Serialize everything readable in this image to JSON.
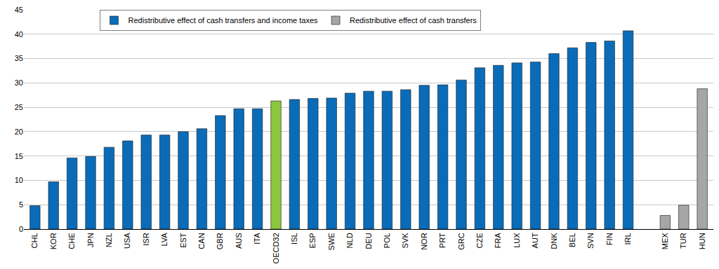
{
  "chart_data": {
    "type": "bar",
    "categories": [
      "CHL",
      "KOR",
      "CHE",
      "JPN",
      "NZL",
      "USA",
      "ISR",
      "LVA",
      "EST",
      "CAN",
      "GBR",
      "AUS",
      "ITA",
      "OECD32",
      "ISL",
      "ESP",
      "SWE",
      "NLD",
      "DEU",
      "POL",
      "SVK",
      "NOR",
      "PRT",
      "GRC",
      "CZE",
      "FRA",
      "LUX",
      "AUT",
      "DNK",
      "BEL",
      "SVN",
      "FIN",
      "IRL",
      null,
      "MEX",
      "TUR",
      "HUN"
    ],
    "series": [
      {
        "name": "Redistributive effect of cash transfers and income taxes",
        "color": "#0a6cb8",
        "colors": [
          "#0a6cb8",
          "#0a6cb8",
          "#0a6cb8",
          "#0a6cb8",
          "#0a6cb8",
          "#0a6cb8",
          "#0a6cb8",
          "#0a6cb8",
          "#0a6cb8",
          "#0a6cb8",
          "#0a6cb8",
          "#0a6cb8",
          "#0a6cb8",
          "#8cc63f",
          "#0a6cb8",
          "#0a6cb8",
          "#0a6cb8",
          "#0a6cb8",
          "#0a6cb8",
          "#0a6cb8",
          "#0a6cb8",
          "#0a6cb8",
          "#0a6cb8",
          "#0a6cb8",
          "#0a6cb8",
          "#0a6cb8",
          "#0a6cb8",
          "#0a6cb8",
          "#0a6cb8",
          "#0a6cb8",
          "#0a6cb8",
          "#0a6cb8",
          "#0a6cb8",
          "#0a6cb8",
          "#0a6cb8",
          "#0a6cb8",
          "#0a6cb8"
        ],
        "values": [
          4.8,
          9.7,
          14.6,
          14.9,
          16.8,
          18.1,
          19.3,
          19.3,
          20.0,
          20.6,
          23.3,
          24.7,
          24.7,
          26.3,
          26.6,
          26.8,
          26.9,
          27.9,
          28.3,
          28.3,
          28.6,
          29.5,
          29.6,
          30.6,
          33.1,
          33.6,
          34.1,
          34.3,
          36.0,
          37.2,
          38.3,
          38.6,
          40.7,
          null,
          null,
          null,
          null
        ]
      },
      {
        "name": "Redistributive effect of cash transfers",
        "color": "#a6a6a6",
        "values": [
          null,
          null,
          null,
          null,
          null,
          null,
          null,
          null,
          null,
          null,
          null,
          null,
          null,
          null,
          null,
          null,
          null,
          null,
          null,
          null,
          null,
          null,
          null,
          null,
          null,
          null,
          null,
          null,
          null,
          null,
          null,
          null,
          null,
          null,
          2.8,
          4.9,
          28.8
        ]
      }
    ],
    "ylim": [
      0,
      45
    ],
    "yticks": [
      0,
      5,
      10,
      15,
      20,
      25,
      30,
      35,
      40,
      45
    ],
    "grid": true,
    "legend": "top"
  }
}
